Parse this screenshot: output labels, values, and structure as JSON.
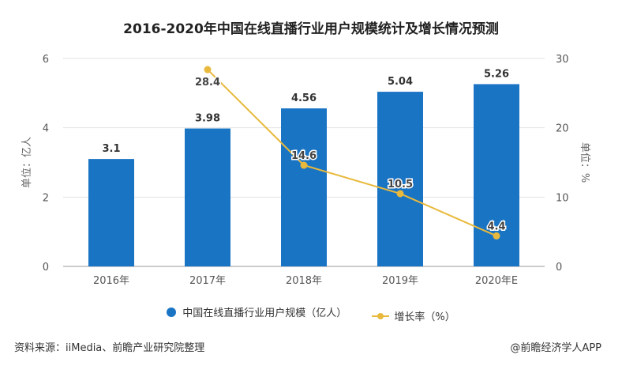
{
  "chart_data": {
    "type": "bar+line",
    "title": "2016-2020年中国在线直播行业用户规模统计及增长情况预测",
    "categories": [
      "2016年",
      "2017年",
      "2018年",
      "2019年",
      "2020年E"
    ],
    "series": [
      {
        "name": "中国在线直播行业用户规模（亿人）",
        "type": "bar",
        "axis": "left",
        "values": [
          3.1,
          3.98,
          4.56,
          5.04,
          5.26
        ],
        "labels": [
          "3.1",
          "3.98",
          "4.56",
          "5.04",
          "5.26"
        ],
        "color": "#1a74c4"
      },
      {
        "name": "增长率（%）",
        "type": "line",
        "axis": "right",
        "values": [
          null,
          28.4,
          14.6,
          10.5,
          4.4
        ],
        "labels": [
          "",
          "28.4",
          "14.6",
          "10.5",
          "4.4"
        ],
        "color": "#e8b93c"
      }
    ],
    "ylabel": "单位：亿人",
    "ylabel_right": "单位：%",
    "ylim": [
      0,
      6
    ],
    "yticks": [
      "0",
      "2",
      "4",
      "6"
    ],
    "ylim_right": [
      0,
      30
    ],
    "yticks_right": [
      "0",
      "10",
      "20",
      "30"
    ],
    "grid": true,
    "legend_placement": "bottom"
  },
  "footer": {
    "source": "资料来源：iiMedia、前瞻产业研究院整理",
    "credit": "@前瞻经济学人APP"
  }
}
